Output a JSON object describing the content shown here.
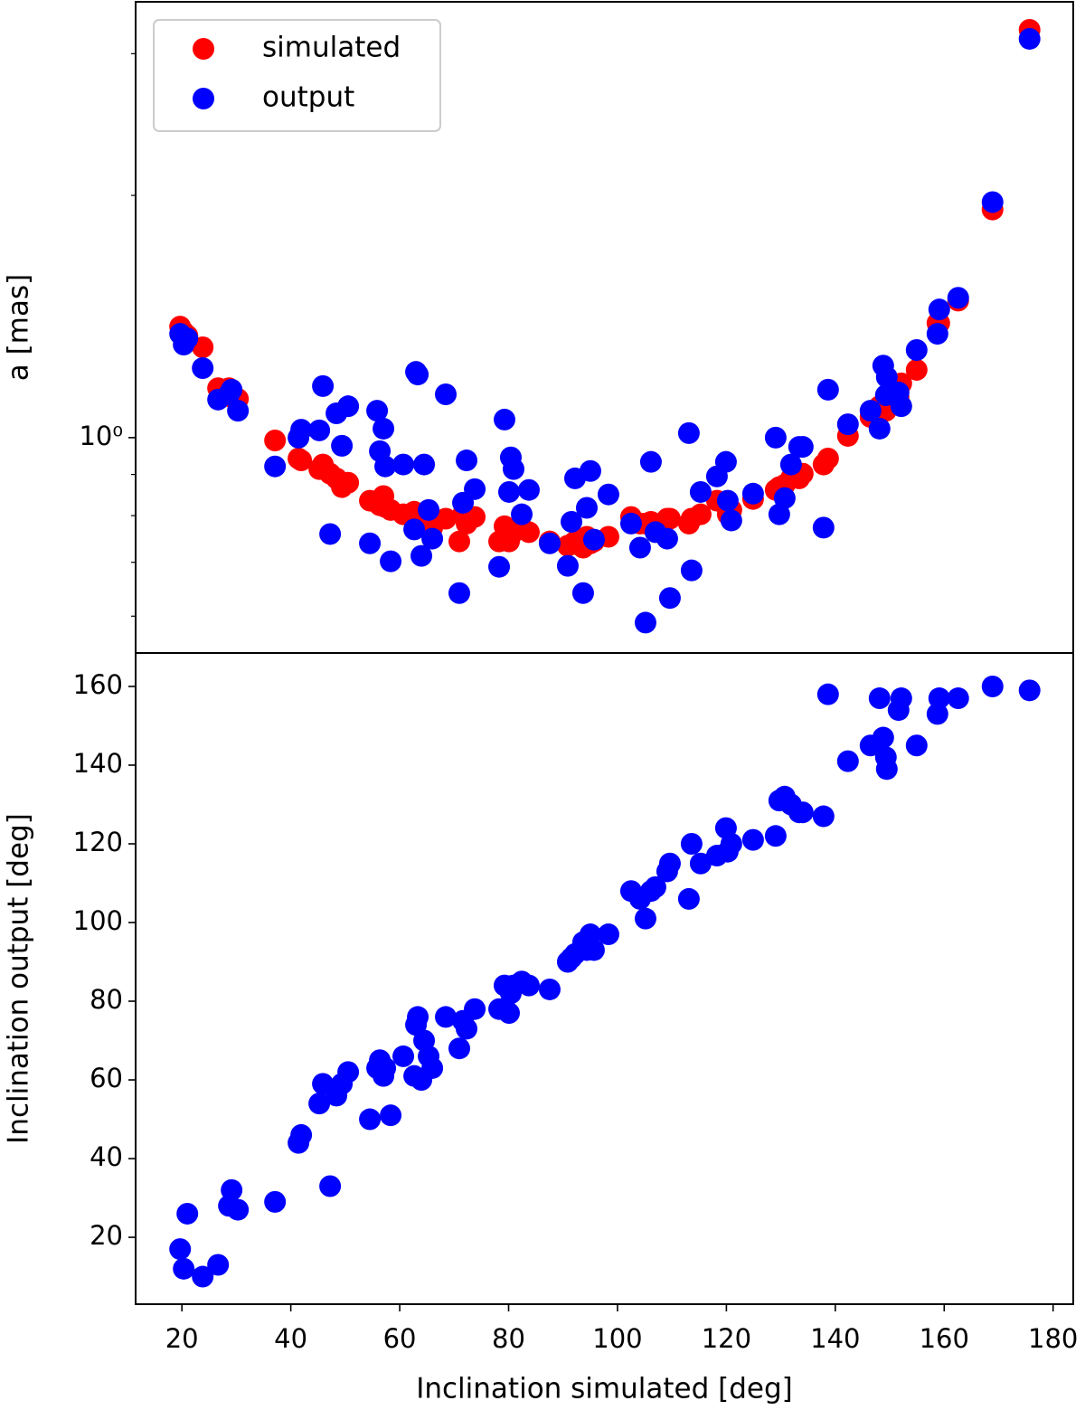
{
  "chart_data": [
    {
      "type": "scatter",
      "ylabel": "a [mas]",
      "yscale": "log",
      "xlim": [
        11.5,
        183.7
      ],
      "ylim": [
        0.54,
        3.48
      ],
      "yticks": [
        {
          "value": 1,
          "label": "10⁰"
        }
      ],
      "yminorticks": [
        0.6,
        0.7,
        0.8,
        0.9,
        2,
        3
      ],
      "legend": "upper left",
      "x": [
        19.67,
        20.33,
        21.0,
        23.82,
        26.64,
        28.63,
        29.13,
        30.29,
        37.1,
        41.41,
        41.91,
        45.23,
        45.89,
        47.22,
        48.38,
        49.38,
        50.54,
        54.52,
        55.85,
        56.35,
        57.01,
        57.34,
        58.34,
        60.66,
        62.66,
        62.99,
        63.32,
        63.98,
        64.48,
        65.31,
        65.98,
        68.46,
        70.95,
        71.62,
        72.28,
        73.78,
        78.26,
        79.25,
        80.08,
        80.41,
        80.91,
        82.41,
        83.73,
        87.55,
        90.87,
        91.54,
        92.2,
        93.69,
        94.36,
        95.02,
        95.68,
        98.34,
        102.49,
        104.15,
        105.15,
        106.14,
        106.97,
        109.13,
        109.63,
        113.11,
        113.61,
        115.27,
        118.26,
        119.92,
        120.25,
        120.91,
        124.9,
        129.05,
        129.71,
        130.71,
        131.87,
        133.36,
        134.02,
        137.84,
        138.67,
        142.32,
        146.47,
        148.13,
        148.8,
        149.29,
        149.46,
        152.12,
        151.62,
        154.94,
        158.76,
        159.09,
        162.57,
        168.88,
        175.68
      ],
      "series": [
        {
          "name": "simulated",
          "color": "#ff0000",
          "values": [
            1.374,
            1.353,
            1.339,
            1.295,
            1.152,
            1.152,
            1.123,
            1.117,
            0.992,
            0.942,
            0.937,
            0.914,
            0.926,
            0.902,
            0.89,
            0.868,
            0.879,
            0.835,
            0.83,
            0.824,
            0.846,
            0.82,
            0.813,
            0.803,
            0.809,
            0.803,
            0.793,
            0.786,
            0.793,
            0.782,
            0.773,
            0.793,
            0.743,
            0.803,
            0.782,
            0.797,
            0.743,
            0.776,
            0.743,
            0.763,
            0.763,
            0.773,
            0.763,
            0.743,
            0.734,
            0.737,
            0.743,
            0.73,
            0.753,
            0.739,
            0.743,
            0.753,
            0.797,
            0.782,
            0.782,
            0.786,
            0.773,
            0.793,
            0.793,
            0.782,
            0.793,
            0.803,
            0.835,
            0.824,
            0.803,
            0.813,
            0.839,
            0.861,
            0.868,
            0.874,
            0.89,
            0.89,
            0.902,
            0.926,
            0.942,
            1.005,
            1.061,
            1.094,
            1.08,
            1.08,
            1.123,
            1.168,
            1.123,
            1.214,
            1.388,
            1.388,
            1.48,
            1.921,
            3.212
          ]
        },
        {
          "name": "output",
          "color": "#0000ff",
          "values": [
            1.346,
            1.305,
            1.328,
            1.22,
            1.115,
            1.132,
            1.147,
            1.08,
            0.921,
            1.0,
            1.023,
            1.021,
            1.159,
            0.759,
            1.072,
            0.977,
            1.094,
            0.739,
            1.08,
            0.962,
            1.026,
            0.921,
            0.702,
            0.926,
            0.769,
            1.207,
            1.198,
            0.713,
            0.926,
            0.813,
            0.749,
            1.132,
            0.641,
            0.83,
            0.937,
            0.863,
            0.691,
            1.053,
            0.856,
            0.945,
            0.914,
            0.803,
            0.861,
            0.739,
            0.693,
            0.786,
            0.89,
            0.641,
            0.818,
            0.909,
            0.747,
            0.85,
            0.782,
            0.73,
            0.589,
            0.933,
            0.763,
            0.749,
            0.632,
            1.013,
            0.684,
            0.856,
            0.895,
            0.933,
            0.835,
            0.789,
            0.852,
            1.0,
            0.803,
            0.841,
            0.926,
            0.974,
            0.974,
            0.773,
            1.147,
            1.039,
            1.08,
            1.026,
            1.229,
            1.129,
            1.189,
            1.094,
            1.138,
            1.285,
            1.346,
            1.443,
            1.492,
            1.962,
            3.13
          ]
        }
      ]
    },
    {
      "type": "scatter",
      "xlabel": "Inclination simulated [deg]",
      "ylabel": "Inclination output [deg]",
      "xlim": [
        11.5,
        183.7
      ],
      "ylim": [
        3.0,
        168.5
      ],
      "xticks": [
        20,
        40,
        60,
        80,
        100,
        120,
        140,
        160,
        180
      ],
      "yticks": [
        20,
        40,
        60,
        80,
        100,
        120,
        140,
        160
      ],
      "x": [
        19.67,
        20.33,
        21.0,
        23.82,
        26.64,
        28.63,
        29.13,
        30.29,
        37.1,
        41.41,
        41.91,
        45.23,
        45.89,
        47.22,
        48.38,
        49.38,
        50.54,
        54.52,
        55.85,
        56.35,
        57.01,
        57.34,
        58.34,
        60.66,
        62.66,
        62.99,
        63.32,
        63.98,
        64.48,
        65.31,
        65.98,
        68.46,
        70.95,
        71.62,
        72.28,
        73.78,
        78.26,
        79.25,
        80.08,
        80.41,
        80.91,
        82.41,
        83.73,
        87.55,
        90.87,
        91.54,
        92.2,
        93.69,
        94.36,
        95.02,
        95.68,
        98.34,
        102.49,
        104.15,
        105.15,
        106.14,
        106.97,
        109.13,
        109.63,
        113.11,
        113.61,
        115.27,
        118.26,
        119.92,
        120.25,
        120.91,
        124.9,
        129.05,
        129.71,
        130.71,
        131.87,
        133.36,
        134.02,
        137.84,
        138.67,
        142.32,
        146.47,
        148.13,
        148.8,
        149.29,
        149.46,
        152.12,
        151.62,
        154.94,
        158.76,
        159.09,
        162.57,
        168.88,
        175.68
      ],
      "series": [
        {
          "color": "#0000ff",
          "values": [
            17,
            12,
            26,
            10,
            13,
            28,
            32,
            27,
            29,
            44,
            46,
            54,
            59,
            33,
            56,
            59,
            62,
            50,
            63,
            65,
            61,
            63,
            51,
            66,
            61,
            74,
            76,
            60,
            70,
            66,
            63,
            76,
            68,
            75,
            73,
            78,
            78,
            84,
            77,
            82,
            84,
            85,
            84,
            83,
            90,
            91,
            92,
            95,
            93,
            97,
            93,
            97,
            108,
            106,
            101,
            108,
            109,
            113,
            115,
            106,
            120,
            115,
            117,
            124,
            118,
            120,
            121,
            122,
            131,
            132,
            130,
            128,
            128,
            127,
            158,
            141,
            145,
            157,
            147,
            142,
            139,
            157,
            154,
            145,
            153,
            157,
            157,
            160,
            159
          ]
        }
      ]
    }
  ]
}
